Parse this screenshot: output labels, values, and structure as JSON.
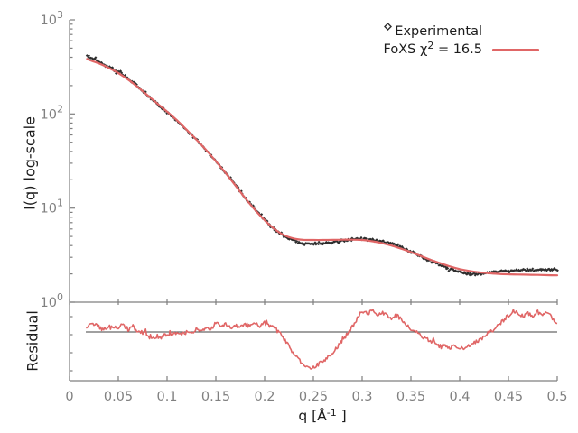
{
  "figure": {
    "background": "#ffffff",
    "labels": {
      "ylabel_main": "I(q) log-scale",
      "ylabel_residual": "Residual",
      "xlabel_prefix": "q [Å",
      "xlabel_sup": "-1",
      "xlabel_suffix": " ]"
    },
    "legend": {
      "experimental_label": "Experimental",
      "foxs_label_prefix": "FoXS χ",
      "foxs_label_sup": "2",
      "foxs_label_suffix": " = 16.5"
    }
  },
  "style": {
    "axis_color": "#7f7f7f",
    "tick_label_color": "#808080",
    "text_color": "#1c1c1c",
    "experimental_color": "#2e2e2e",
    "foxs_color": "#e06666",
    "reference_line_color": "#404040"
  },
  "chart_data": {
    "type": "line",
    "title": "",
    "xlabel": "q [Å⁻¹]",
    "ylabel": "I(q) log-scale",
    "ylabel_residual": "Residual",
    "grid": false,
    "legend_position": "top-right",
    "x": {
      "min": 0,
      "max": 0.5,
      "ticks": [
        0,
        0.05,
        0.1,
        0.15,
        0.2,
        0.25,
        0.3,
        0.35,
        0.4,
        0.45,
        0.5
      ],
      "tick_labels": [
        "0",
        "0.05",
        "0.1",
        "0.15",
        "0.2",
        "0.25",
        "0.3",
        "0.35",
        "0.4",
        "0.45",
        "0.5"
      ]
    },
    "y_main": {
      "scale": "log",
      "min": 1,
      "max": 1000,
      "tick_exponents": [
        0,
        1,
        2,
        3
      ],
      "tick_base": "10"
    },
    "series": [
      {
        "name": "Experimental",
        "type": "scatter",
        "marker": "diamond",
        "color": "#2e2e2e",
        "q": [
          0.018,
          0.02,
          0.03,
          0.04,
          0.05,
          0.06,
          0.07,
          0.08,
          0.09,
          0.1,
          0.11,
          0.12,
          0.13,
          0.14,
          0.15,
          0.16,
          0.17,
          0.18,
          0.19,
          0.2,
          0.21,
          0.22,
          0.23,
          0.24,
          0.25,
          0.26,
          0.27,
          0.28,
          0.29,
          0.3,
          0.31,
          0.32,
          0.33,
          0.34,
          0.35,
          0.36,
          0.37,
          0.38,
          0.39,
          0.4,
          0.41,
          0.42,
          0.43,
          0.44,
          0.45,
          0.46,
          0.47,
          0.48,
          0.49,
          0.5
        ],
        "I": [
          415,
          408,
          358,
          318,
          280,
          238,
          196,
          158,
          127,
          104,
          85,
          67,
          53,
          41,
          31.5,
          23.8,
          17.6,
          13.0,
          9.7,
          7.5,
          6.0,
          5.05,
          4.5,
          4.2,
          4.15,
          4.2,
          4.3,
          4.5,
          4.65,
          4.7,
          4.6,
          4.45,
          4.2,
          3.85,
          3.45,
          3.05,
          2.75,
          2.5,
          2.25,
          2.1,
          2.0,
          2.0,
          2.05,
          2.1,
          2.15,
          2.2,
          2.2,
          2.2,
          2.25,
          2.2
        ]
      },
      {
        "name": "FoXS",
        "chi2": 16.5,
        "type": "line",
        "color": "#e06666",
        "q": [
          0.018,
          0.02,
          0.03,
          0.04,
          0.05,
          0.06,
          0.07,
          0.08,
          0.09,
          0.1,
          0.11,
          0.12,
          0.13,
          0.14,
          0.15,
          0.16,
          0.17,
          0.18,
          0.19,
          0.2,
          0.21,
          0.22,
          0.23,
          0.24,
          0.25,
          0.26,
          0.27,
          0.28,
          0.29,
          0.3,
          0.31,
          0.32,
          0.33,
          0.34,
          0.35,
          0.36,
          0.37,
          0.38,
          0.39,
          0.4,
          0.41,
          0.42,
          0.43,
          0.44,
          0.45,
          0.46,
          0.47,
          0.48,
          0.49,
          0.5
        ],
        "I": [
          385,
          375,
          345,
          310,
          272,
          232,
          193,
          158,
          129,
          106,
          86,
          68,
          53.5,
          41.5,
          31.5,
          23.6,
          17.4,
          12.8,
          9.6,
          7.45,
          6.0,
          5.15,
          4.75,
          4.6,
          4.58,
          4.58,
          4.6,
          4.62,
          4.62,
          4.58,
          4.45,
          4.25,
          4.0,
          3.7,
          3.4,
          3.1,
          2.83,
          2.6,
          2.4,
          2.25,
          2.15,
          2.08,
          2.03,
          2.0,
          1.98,
          1.97,
          1.96,
          1.95,
          1.94,
          1.93
        ]
      }
    ],
    "residual": {
      "name": "Residual",
      "color": "#e06666",
      "reference_line": 1.0,
      "q": [
        0.018,
        0.022,
        0.025,
        0.03,
        0.035,
        0.04,
        0.045,
        0.05,
        0.055,
        0.06,
        0.065,
        0.07,
        0.075,
        0.08,
        0.085,
        0.09,
        0.095,
        0.1,
        0.105,
        0.11,
        0.115,
        0.12,
        0.125,
        0.13,
        0.135,
        0.14,
        0.145,
        0.15,
        0.155,
        0.16,
        0.165,
        0.17,
        0.175,
        0.18,
        0.185,
        0.19,
        0.195,
        0.2,
        0.205,
        0.21,
        0.215,
        0.22,
        0.225,
        0.23,
        0.235,
        0.24,
        0.245,
        0.25,
        0.255,
        0.26,
        0.265,
        0.27,
        0.275,
        0.28,
        0.285,
        0.29,
        0.295,
        0.3,
        0.305,
        0.31,
        0.315,
        0.32,
        0.325,
        0.33,
        0.335,
        0.34,
        0.345,
        0.35,
        0.355,
        0.36,
        0.365,
        0.37,
        0.375,
        0.38,
        0.385,
        0.39,
        0.395,
        0.4,
        0.405,
        0.41,
        0.415,
        0.42,
        0.425,
        0.43,
        0.435,
        0.44,
        0.445,
        0.45,
        0.455,
        0.46,
        0.465,
        0.47,
        0.475,
        0.48,
        0.485,
        0.49,
        0.495,
        0.5
      ],
      "deviation": [
        0.09,
        0.33,
        0.24,
        0.18,
        0.06,
        0.21,
        0.12,
        0.15,
        0.24,
        0.09,
        0.18,
        0.03,
        -0.03,
        -0.06,
        -0.18,
        -0.24,
        -0.15,
        -0.06,
        -0.12,
        0.0,
        -0.09,
        0.03,
        -0.03,
        0.09,
        0.03,
        0.12,
        0.06,
        0.33,
        0.18,
        0.27,
        0.15,
        0.24,
        0.15,
        0.27,
        0.18,
        0.3,
        0.21,
        0.3,
        0.21,
        0.15,
        -0.03,
        -0.24,
        -0.42,
        -0.7,
        -0.94,
        -1.12,
        -1.21,
        -1.18,
        -1.09,
        -0.97,
        -0.85,
        -0.7,
        -0.48,
        -0.27,
        -0.06,
        0.18,
        0.45,
        0.7,
        0.61,
        0.73,
        0.58,
        0.67,
        0.55,
        0.48,
        0.58,
        0.42,
        0.27,
        0.12,
        0.0,
        -0.12,
        -0.21,
        -0.3,
        -0.39,
        -0.48,
        -0.42,
        -0.55,
        -0.48,
        -0.58,
        -0.52,
        -0.45,
        -0.36,
        -0.27,
        -0.15,
        -0.03,
        0.09,
        0.24,
        0.39,
        0.55,
        0.73,
        0.61,
        0.52,
        0.64,
        0.55,
        0.67,
        0.58,
        0.7,
        0.48,
        0.24
      ]
    }
  }
}
